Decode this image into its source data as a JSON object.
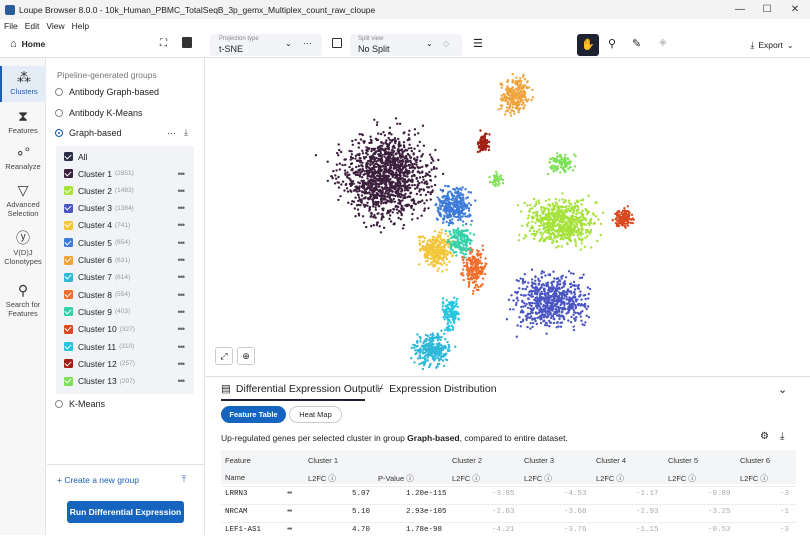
{
  "window": {
    "title": "Loupe Browser 8.0.0 - 10k_Human_PBMC_TotalSeqB_3p_gemx_Multiplex_count_raw_cloupe"
  },
  "menu": [
    "File",
    "Edit",
    "View",
    "Help"
  ],
  "toolbar": {
    "home_label": "Home",
    "projection_type_label": "Projection type",
    "projection_value": "t-SNE",
    "split_view_label": "Split view",
    "split_value": "No Split",
    "export_label": "Export"
  },
  "rail": [
    {
      "label": "Clusters",
      "icon": "clusters-icon"
    },
    {
      "label": "Features",
      "icon": "features-icon"
    },
    {
      "label": "Reanalyze",
      "icon": "reanalyze-icon"
    },
    {
      "label": "Advanced Selection",
      "icon": "filter-icon"
    },
    {
      "label": "V(D)J Clonotypes",
      "icon": "vdj-icon"
    },
    {
      "label": "Search for Features",
      "icon": "search-icon"
    }
  ],
  "groups": {
    "header": "Pipeline-generated groups",
    "items": [
      "Antibody Graph-based",
      "Antibody K-Means",
      "Graph-based",
      "K-Means"
    ],
    "all_label": "All",
    "clusters": [
      {
        "name": "Cluster 1",
        "count": "(2851)",
        "color": "#3b1f3c"
      },
      {
        "name": "Cluster 2",
        "count": "(1483)",
        "color": "#a5e23a"
      },
      {
        "name": "Cluster 3",
        "count": "(1384)",
        "color": "#4a55c2"
      },
      {
        "name": "Cluster 4",
        "count": "(741)",
        "color": "#f2c63a"
      },
      {
        "name": "Cluster 5",
        "count": "(654)",
        "color": "#3d7bd9"
      },
      {
        "name": "Cluster 6",
        "count": "(631)",
        "color": "#f0a33a"
      },
      {
        "name": "Cluster 7",
        "count": "(614)",
        "color": "#30b8d8"
      },
      {
        "name": "Cluster 8",
        "count": "(554)",
        "color": "#ef6f2e"
      },
      {
        "name": "Cluster 9",
        "count": "(403)",
        "color": "#34d1a8"
      },
      {
        "name": "Cluster 10",
        "count": "(327)",
        "color": "#d9481f"
      },
      {
        "name": "Cluster 11",
        "count": "(310)",
        "color": "#26c6e0"
      },
      {
        "name": "Cluster 12",
        "count": "(257)",
        "color": "#a11f14"
      },
      {
        "name": "Cluster 13",
        "count": "(207)",
        "color": "#7fe05a"
      }
    ],
    "create_group": "+ Create a new group",
    "run_button": "Run Differential Expression"
  },
  "bottom": {
    "tab1": "Differential Expression Output",
    "tab2": "Expression Distribution",
    "subtab1": "Feature Table",
    "subtab2": "Heat Map",
    "desc_pre": "Up-regulated genes per selected cluster in group ",
    "desc_group": "Graph-based",
    "desc_post": ", compared to entire dataset.",
    "col_feature": "Feature",
    "col_name": "Name",
    "col_clusters": [
      "Cluster 1",
      "Cluster 2",
      "Cluster 3",
      "Cluster 4",
      "Cluster 5",
      "Cluster 6"
    ],
    "l2fc": "L2FC",
    "pvalue": "P-Value",
    "rows": [
      {
        "name": "LRRN3",
        "c1_l2fc": "5.07",
        "c1_p": "1.20e-115",
        "others": [
          "-3.85",
          "-4.53",
          "-1.17",
          "-0.89",
          "-3"
        ]
      },
      {
        "name": "NRCAM",
        "c1_l2fc": "5.10",
        "c1_p": "2.93e-105",
        "others": [
          "-2.83",
          "-3.68",
          "-2.93",
          "-3.25",
          "-1"
        ]
      },
      {
        "name": "LEF1-AS1",
        "c1_l2fc": "4.70",
        "c1_p": "1.78e-98",
        "others": [
          "-4.21",
          "-3.76",
          "-1.15",
          "-0.53",
          "-3"
        ]
      }
    ]
  }
}
